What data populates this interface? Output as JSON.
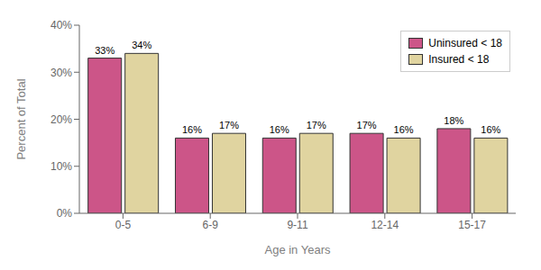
{
  "chart_data": {
    "type": "bar",
    "categories": [
      "0-5",
      "6-9",
      "9-11",
      "12-14",
      "15-17"
    ],
    "series": [
      {
        "name": "Uninsured < 18",
        "color": "#CC5588",
        "values": [
          33,
          16,
          16,
          17,
          18
        ],
        "value_labels": [
          "33%",
          "16%",
          "16%",
          "17%",
          "18%"
        ]
      },
      {
        "name": "Insured < 18",
        "color": "#E0D4A0",
        "values": [
          34,
          17,
          17,
          16,
          16
        ],
        "value_labels": [
          "34%",
          "17%",
          "17%",
          "16%",
          "16%"
        ]
      }
    ],
    "xlabel": "Age in Years",
    "ylabel": "Percent of Total",
    "ylim": [
      0,
      40
    ],
    "yticks": [
      {
        "value": 0,
        "label": "0%"
      },
      {
        "value": 10,
        "label": "10%"
      },
      {
        "value": 20,
        "label": "20%"
      },
      {
        "value": 30,
        "label": "30%"
      },
      {
        "value": 40,
        "label": "40%"
      }
    ],
    "legend": "upper right",
    "data_labels": true,
    "grid": false
  }
}
